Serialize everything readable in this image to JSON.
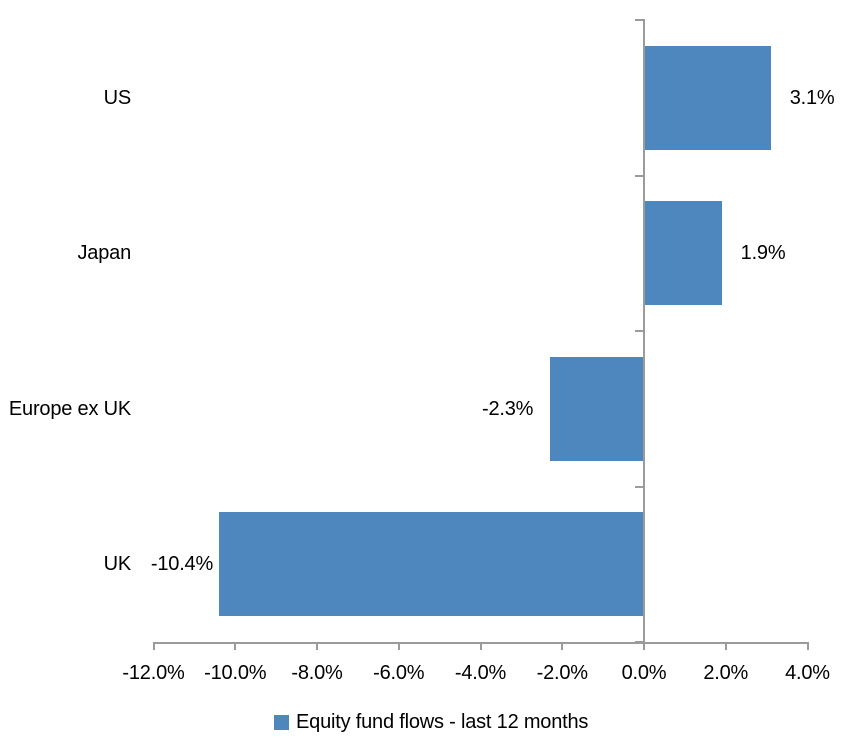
{
  "chart_data": {
    "type": "bar",
    "orientation": "horizontal",
    "title": "",
    "xlabel": "",
    "ylabel": "",
    "categories": [
      "US",
      "Japan",
      "Europe ex UK",
      "UK"
    ],
    "series": [
      {
        "name": "Equity fund flows - last 12 months",
        "values": [
          3.1,
          1.9,
          -2.3,
          -10.4
        ]
      }
    ],
    "value_labels": [
      "3.1%",
      "1.9%",
      "-2.3%",
      "-10.4%"
    ],
    "xlim": [
      -12,
      4
    ],
    "x_ticks": [
      -12,
      -10,
      -8,
      -6,
      -4,
      -2,
      0,
      2,
      4
    ],
    "x_tick_labels": [
      "-12.0%",
      "-10.0%",
      "-8.0%",
      "-6.0%",
      "-4.0%",
      "-2.0%",
      "0.0%",
      "2.0%",
      "4.0%"
    ],
    "grid": false,
    "legend_position": "bottom-center",
    "colors": {
      "bar": "#4e87bd",
      "axis": "#9b9b9b",
      "text": "#000000",
      "background": "#ffffff"
    }
  },
  "legend": {
    "label": "Equity fund flows - last 12 months"
  }
}
